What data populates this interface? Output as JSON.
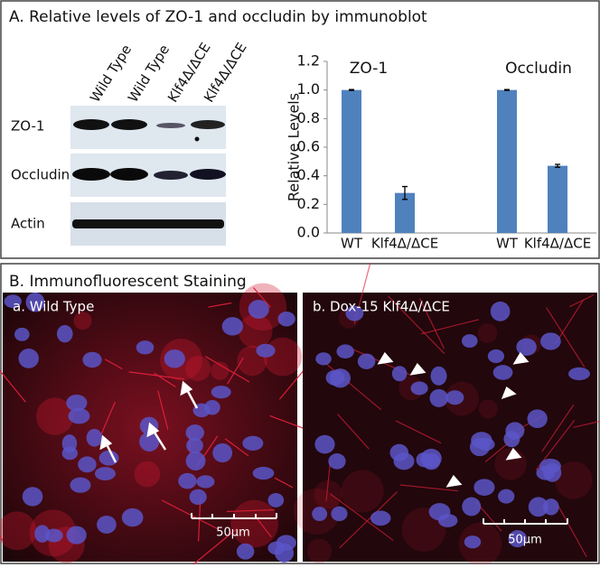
{
  "panel_a": {
    "title": "A. Relative levels of ZO-1 and occludin by immunoblot"
  },
  "blot": {
    "row_labels": [
      "ZO-1",
      "Occludin",
      "Actin"
    ],
    "lane_labels": [
      "Wild Type",
      "Wild Type",
      "Klf4Δ/ΔCE",
      "Klf4Δ/ΔCE"
    ]
  },
  "chart_data": {
    "type": "bar",
    "ylabel": "Relative Levels",
    "categories": [
      "WT",
      "Klf4Δ/ΔCE",
      "WT",
      "Klf4Δ/ΔCE"
    ],
    "values": [
      1.0,
      0.28,
      1.0,
      0.47
    ],
    "errors": [
      0.003,
      0.045,
      0.003,
      0.01
    ],
    "color": "#4f81bd",
    "ylim": [
      0,
      1.2
    ],
    "yticks": [
      {
        "value": 0,
        "label": "0.0"
      },
      0.2,
      0.4,
      0.6,
      0.8,
      {
        "value": 1,
        "label": "1.0"
      },
      1.2
    ],
    "annotations": [
      "ZO-1",
      "Occludin"
    ],
    "grid": false
  },
  "panel_b": {
    "title": "B. Immunofluorescent Staining",
    "images": [
      {
        "label": "a. Wild Type",
        "scale": "50µm"
      },
      {
        "label": "b. Dox-15 Klf4Δ/ΔCE",
        "scale": "50µm"
      }
    ]
  }
}
